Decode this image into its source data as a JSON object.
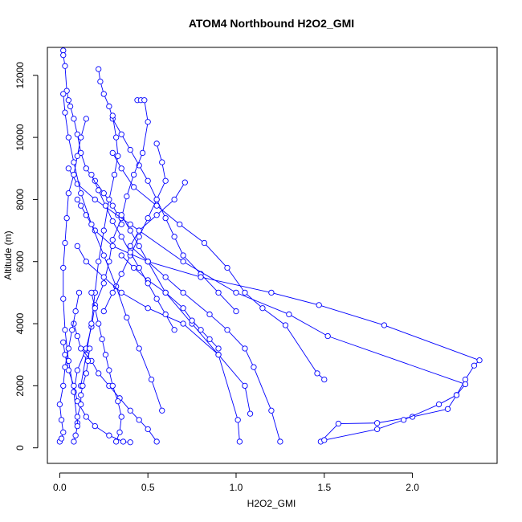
{
  "chart_data": {
    "type": "line",
    "title": "ATOM4 Northbound H2O2_GMI",
    "xlabel": "H2O2_GMI",
    "ylabel": "Altitude (m)",
    "xlim": [
      -0.07,
      2.48
    ],
    "ylim": [
      -500,
      12900
    ],
    "xticks": [
      0.0,
      0.5,
      1.0,
      1.5,
      2.0
    ],
    "xtick_labels": [
      "0.0",
      "0.5",
      "1.0",
      "1.5",
      "2.0"
    ],
    "yticks": [
      0,
      2000,
      4000,
      6000,
      8000,
      10000,
      12000
    ],
    "ytick_labels": [
      "0",
      "2000",
      "4000",
      "6000",
      "8000",
      "10000",
      "12000"
    ],
    "grid": false,
    "marker": "open-circle",
    "color": "#0000ff",
    "series": [
      {
        "x": [
          0.02,
          0.02,
          0.03,
          0.04,
          0.05,
          0.06,
          0.08,
          0.1,
          0.12,
          0.15,
          0.2,
          0.25,
          0.3,
          0.33,
          0.35
        ],
        "y": [
          12800,
          12650,
          12300,
          11500,
          11200,
          11000,
          10600,
          10100,
          9500,
          9000,
          8600,
          8200,
          7800,
          7500,
          7200
        ]
      },
      {
        "x": [
          0.22,
          0.23,
          0.25,
          0.28,
          0.3,
          0.35,
          0.4,
          0.45,
          0.5,
          0.55,
          0.6,
          0.65,
          0.7,
          0.8,
          0.9,
          1.0
        ],
        "y": [
          12200,
          11800,
          11400,
          11000,
          10600,
          10100,
          9600,
          9100,
          8600,
          8000,
          7400,
          6800,
          6200,
          5600,
          5000,
          4400
        ]
      },
      {
        "x": [
          0.44,
          0.46,
          0.48,
          0.5,
          0.47,
          0.42,
          0.38,
          0.35,
          0.3,
          0.28,
          0.25,
          0.2,
          0.18,
          0.15,
          0.1,
          0.08
        ],
        "y": [
          11200,
          11200,
          11200,
          10500,
          9500,
          8800,
          8100,
          7400,
          6700,
          6000,
          5300,
          4600,
          3900,
          3200,
          2500,
          1800
        ]
      },
      {
        "x": [
          0.1,
          0.12,
          0.15,
          0.2,
          0.3,
          0.5,
          0.8,
          1.2,
          1.47,
          1.84,
          2.38,
          2.35,
          2.3,
          2.25,
          2.2,
          2.0,
          1.8,
          1.58,
          1.48
        ],
        "y": [
          8000,
          7800,
          7500,
          7000,
          6500,
          6000,
          5500,
          5000,
          4600,
          3950,
          2820,
          2650,
          2200,
          1700,
          1250,
          1000,
          800,
          780,
          200
        ]
      },
      {
        "x": [
          0.05,
          0.1,
          0.2,
          0.4,
          0.7,
          1.0,
          1.3,
          1.52,
          2.3,
          2.25,
          2.15,
          1.95,
          1.8,
          1.5
        ],
        "y": [
          9000,
          8500,
          8000,
          7200,
          6000,
          5000,
          4300,
          3600,
          2050,
          1700,
          1400,
          900,
          600,
          250
        ]
      },
      {
        "x": [
          0.71,
          0.65,
          0.55,
          0.45,
          0.4,
          0.5,
          0.6,
          0.7,
          0.85,
          0.95,
          1.05,
          1.1,
          1.2,
          1.25
        ],
        "y": [
          8550,
          8000,
          7500,
          7000,
          6500,
          6000,
          5500,
          5000,
          4300,
          3800,
          3200,
          2600,
          1200,
          200
        ]
      },
      {
        "x": [
          0.3,
          0.35,
          0.42,
          0.55,
          0.68,
          0.82,
          0.95,
          1.05,
          1.15,
          1.28,
          1.46,
          1.5
        ],
        "y": [
          9500,
          9000,
          8400,
          7800,
          7200,
          6600,
          5800,
          5000,
          4500,
          3950,
          2400,
          2200
        ]
      },
      {
        "x": [
          0.15,
          0.12,
          0.1,
          0.08,
          0.05,
          0.04,
          0.03,
          0.02,
          0.02,
          0.03,
          0.05,
          0.08,
          0.1
        ],
        "y": [
          10600,
          10000,
          9400,
          8800,
          8200,
          7400,
          6600,
          5800,
          4800,
          3800,
          2800,
          1800,
          800
        ]
      },
      {
        "x": [
          0.02,
          0.03,
          0.05,
          0.08,
          0.12,
          0.18,
          0.25,
          0.32,
          0.38,
          0.45,
          0.52,
          0.58
        ],
        "y": [
          11400,
          10800,
          10000,
          9200,
          8200,
          7200,
          6200,
          5200,
          4200,
          3200,
          2200,
          1200
        ]
      },
      {
        "x": [
          0.35,
          0.4,
          0.45,
          0.5,
          0.6,
          0.75,
          0.9,
          1.01,
          1.02
        ],
        "y": [
          7500,
          7000,
          6500,
          6000,
          5000,
          4000,
          3000,
          900,
          200
        ]
      },
      {
        "x": [
          0.1,
          0.15,
          0.25,
          0.35,
          0.5,
          0.7,
          0.9,
          1.05,
          1.08
        ],
        "y": [
          6500,
          6000,
          5500,
          5000,
          4500,
          4000,
          3000,
          2000,
          1100
        ]
      },
      {
        "x": [
          0.3,
          0.32,
          0.33,
          0.31,
          0.28,
          0.25,
          0.22,
          0.2,
          0.18,
          0.15,
          0.12
        ],
        "y": [
          10700,
          10000,
          9400,
          8800,
          8000,
          7000,
          6000,
          5000,
          4000,
          3000,
          2000
        ]
      },
      {
        "x": [
          0.08,
          0.1,
          0.12,
          0.18,
          0.22,
          0.28,
          0.34,
          0.4,
          0.45,
          0.5,
          0.55
        ],
        "y": [
          4000,
          3600,
          3200,
          2800,
          2400,
          2000,
          1600,
          1200,
          900,
          600,
          200
        ]
      },
      {
        "x": [
          0.02,
          0.03,
          0.05,
          0.08,
          0.1,
          0.15,
          0.2,
          0.28,
          0.36,
          0.4
        ],
        "y": [
          3400,
          3000,
          2500,
          2000,
          1500,
          1000,
          700,
          400,
          200,
          180
        ]
      },
      {
        "x": [
          0.55,
          0.58,
          0.6,
          0.55,
          0.5,
          0.45,
          0.4,
          0.35,
          0.3,
          0.25
        ],
        "y": [
          9800,
          9200,
          8600,
          8000,
          7400,
          6800,
          6200,
          5600,
          5000,
          4400
        ]
      },
      {
        "x": [
          0.08,
          0.09,
          0.1,
          0.1,
          0.12,
          0.12,
          0.13,
          0.15,
          0.16,
          0.17
        ],
        "y": [
          200,
          400,
          700,
          1000,
          1400,
          1700,
          2000,
          2400,
          2800,
          3200
        ]
      },
      {
        "x": [
          0.0,
          0.01,
          0.02,
          0.01,
          0.0,
          0.02,
          0.03,
          0.05,
          0.07,
          0.09,
          0.11
        ],
        "y": [
          200,
          300,
          500,
          900,
          1400,
          2000,
          2600,
          3200,
          3800,
          4400,
          5000
        ]
      },
      {
        "x": [
          0.32,
          0.34,
          0.35,
          0.33,
          0.3,
          0.28,
          0.26,
          0.24,
          0.22,
          0.2,
          0.18
        ],
        "y": [
          200,
          500,
          1000,
          1500,
          2000,
          2500,
          3000,
          3500,
          4000,
          4500,
          5000
        ]
      },
      {
        "x": [
          0.9,
          0.85,
          0.8,
          0.75,
          0.7,
          0.6,
          0.5,
          0.42,
          0.35
        ],
        "y": [
          3200,
          3500,
          3800,
          4100,
          4500,
          5000,
          5400,
          5800,
          6200
        ]
      },
      {
        "x": [
          0.18,
          0.22,
          0.26,
          0.3,
          0.35,
          0.4,
          0.45,
          0.5,
          0.55,
          0.6,
          0.65
        ],
        "y": [
          8800,
          8300,
          7800,
          7300,
          6800,
          6300,
          5800,
          5300,
          4800,
          4300,
          3800
        ]
      }
    ]
  }
}
